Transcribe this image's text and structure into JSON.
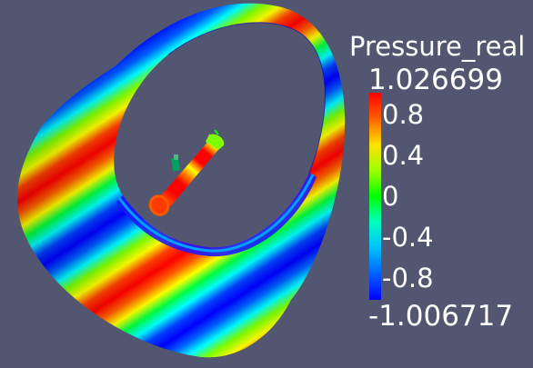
{
  "legend": {
    "title": "Pressure_real",
    "max_label": "1.026699",
    "min_label": "-1.006717",
    "ticks": [
      {
        "label": "0.8",
        "value": 0.8
      },
      {
        "label": "0.4",
        "value": 0.4
      },
      {
        "label": "0",
        "value": 0
      },
      {
        "label": "-0.4",
        "value": -0.4
      },
      {
        "label": "-0.8",
        "value": -0.8
      }
    ],
    "range": [
      -1.006717,
      1.026699
    ],
    "colormap": [
      "#0000ff",
      "#0080ff",
      "#00ffff",
      "#00ff80",
      "#00ff00",
      "#80ff00",
      "#ffff00",
      "#ff8000",
      "#ff0000"
    ]
  },
  "scene": {
    "background": "#525670",
    "objects": [
      "outer-cylinder",
      "inner-cylinder-with-fin"
    ]
  }
}
